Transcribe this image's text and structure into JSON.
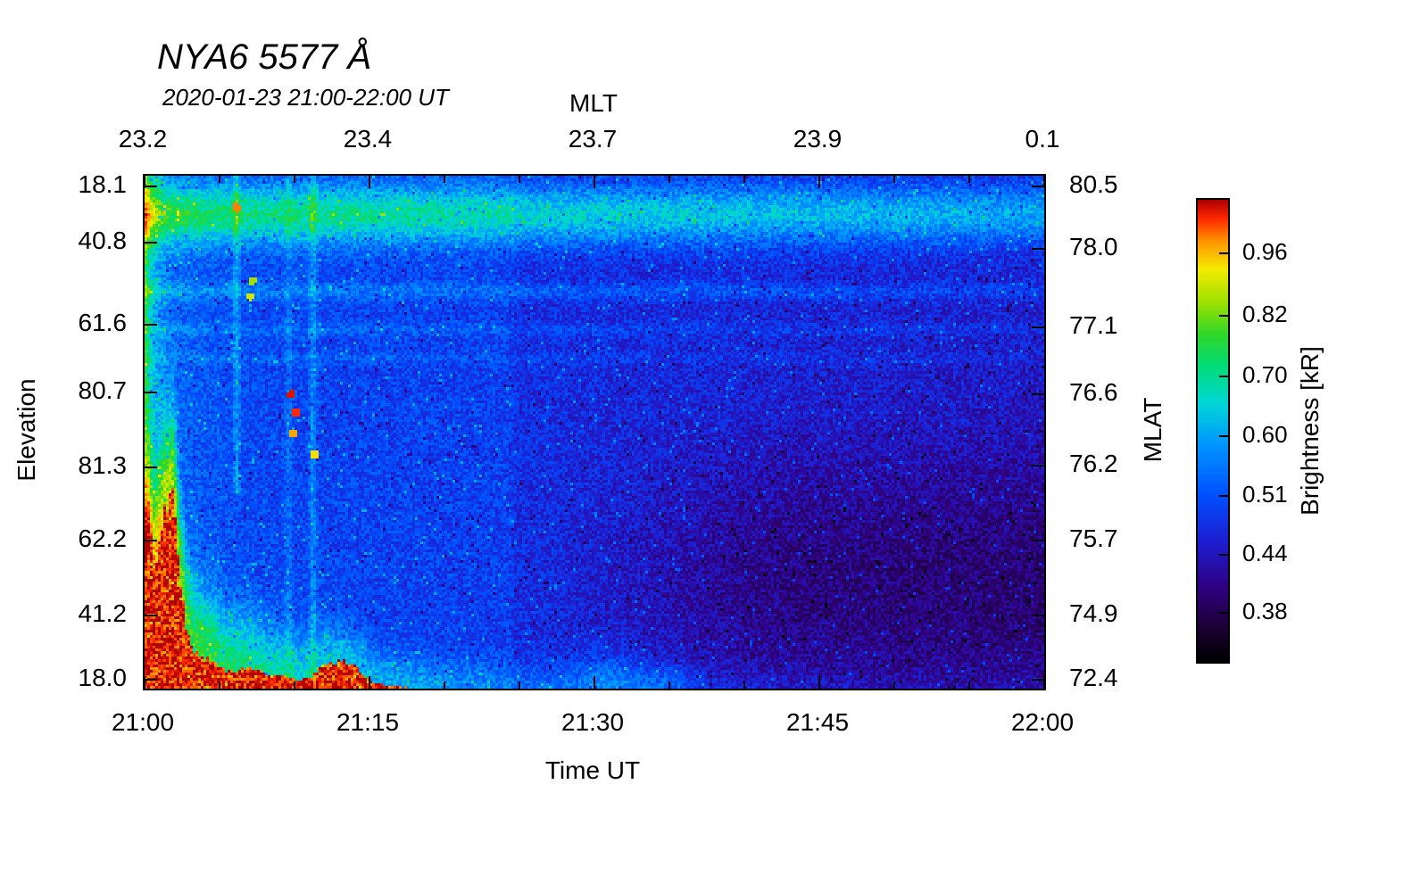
{
  "chart_data": {
    "type": "heatmap",
    "title": "NYA6 5577 Å",
    "subtitle": "2020-01-23 21:00-22:00 UT",
    "axes": {
      "top": {
        "label": "MLT",
        "ticks": [
          "23.2",
          "23.4",
          "23.7",
          "23.9",
          "0.1"
        ],
        "fractions": [
          0,
          0.25,
          0.5,
          0.75,
          1
        ]
      },
      "bottom": {
        "label": "Time UT",
        "ticks": [
          "21:00",
          "21:15",
          "21:30",
          "21:45",
          "22:00"
        ],
        "fractions": [
          0,
          0.25,
          0.5,
          0.75,
          1
        ]
      },
      "left": {
        "label": "Elevation",
        "ticks": [
          "18.1",
          "40.8",
          "61.6",
          "80.7",
          "81.3",
          "62.2",
          "41.2",
          "18.0"
        ],
        "fractions": [
          0.02,
          0.13,
          0.29,
          0.423,
          0.569,
          0.711,
          0.857,
          0.983
        ]
      },
      "right": {
        "label": "MLAT",
        "ticks": [
          "80.5",
          "78.0",
          "77.1",
          "76.6",
          "76.2",
          "75.7",
          "74.9",
          "72.4"
        ],
        "fractions": [
          0.02,
          0.143,
          0.296,
          0.426,
          0.565,
          0.711,
          0.857,
          0.983
        ]
      }
    },
    "colorbar": {
      "label": "Brightness [kR]",
      "ticks": [
        "0.96",
        "0.82",
        "0.70",
        "0.60",
        "0.51",
        "0.44",
        "0.38"
      ],
      "tick_values": [
        0.96,
        0.82,
        0.7,
        0.6,
        0.51,
        0.44,
        0.38
      ],
      "fractions": [
        0.116,
        0.251,
        0.382,
        0.512,
        0.641,
        0.768,
        0.894
      ],
      "scale": "logarithmic"
    },
    "value_range_kR": [
      0.33,
      1.05
    ],
    "features_description": [
      "Bright cyan-green horizontal emission band across the whole hour near the top of the keogram (elevation 18.1-40.8), fading slightly toward 22:00",
      "Intense saturated red auroral brightening at bottom-left (21:00-21:05, low elevation), decaying into a thin red strip along the bottom edge until about 21:18",
      "Red flame-like spike near 21:01-21:02 reaching mid elevations, bordered by yellow-green and cyan fringes",
      "Faint vertical light streaks near 21:06 and 21:11-21:12",
      "Isolated red-orange pixels near 21:10 at mid elevations",
      "Blue noisy background dimming toward 22:00; darkest near-black mottling at lower right",
      "Thin cyan horizontal striations near the 40.8 and 61.6 elevation rows",
      "Cyan bumps along the bottom edge near 21:30-21:37"
    ],
    "render": {
      "grid": {
        "nx": 336,
        "ny": 192
      },
      "noise": 0.14,
      "colormap_stops": [
        [
          0.0,
          [
            0,
            0,
            0
          ]
        ],
        [
          0.07,
          [
            26,
            0,
            50
          ]
        ],
        [
          0.16,
          [
            48,
            0,
            130
          ]
        ],
        [
          0.26,
          [
            30,
            30,
            210
          ]
        ],
        [
          0.36,
          [
            0,
            80,
            255
          ]
        ],
        [
          0.47,
          [
            0,
            150,
            255
          ]
        ],
        [
          0.56,
          [
            0,
            215,
            215
          ]
        ],
        [
          0.64,
          [
            0,
            220,
            120
          ]
        ],
        [
          0.71,
          [
            50,
            215,
            40
          ]
        ],
        [
          0.78,
          [
            160,
            225,
            0
          ]
        ],
        [
          0.85,
          [
            245,
            235,
            0
          ]
        ],
        [
          0.91,
          [
            255,
            150,
            0
          ]
        ],
        [
          0.96,
          [
            255,
            40,
            0
          ]
        ],
        [
          1.0,
          [
            175,
            0,
            0
          ]
        ]
      ],
      "features": [
        {
          "type": "base",
          "v0": 0.345,
          "slope": -0.055
        },
        {
          "type": "hband",
          "y": 0.075,
          "sigma": 0.042,
          "amp": 0.3,
          "xfade": 0.25
        },
        {
          "type": "hband",
          "y": 0.225,
          "sigma": 0.012,
          "amp": 0.1,
          "xfade": 0.35
        },
        {
          "type": "hband",
          "y": 0.3,
          "sigma": 0.009,
          "amp": 0.06,
          "xfade": 0.45
        },
        {
          "type": "hband",
          "y": 0.355,
          "sigma": 0.008,
          "amp": 0.045,
          "xfade": 0.5
        },
        {
          "type": "vglow",
          "amp": 0.33,
          "width": 0.011
        },
        {
          "type": "vline",
          "x": 0.102,
          "w": 0.0026,
          "amp": 0.12,
          "ymax": 0.62
        },
        {
          "type": "vline",
          "x": 0.16,
          "w": 0.0028,
          "amp": 0.07,
          "ymax": 1
        },
        {
          "type": "vline",
          "x": 0.187,
          "w": 0.003,
          "amp": 0.11,
          "ymax": 1
        },
        {
          "type": "step",
          "x": 0.41,
          "amp": -0.028
        },
        {
          "type": "blob",
          "x": 0.52,
          "y": 1.0,
          "sx": 0.035,
          "sy": 0.05,
          "amp": 0.12
        },
        {
          "type": "blob",
          "x": 0.585,
          "y": 1.0,
          "sx": 0.02,
          "sy": 0.035,
          "amp": 0.08
        },
        {
          "type": "blob",
          "x": 0.0,
          "y": 0.5,
          "sx": 0.06,
          "sy": 0.5,
          "amp": 0.05
        },
        {
          "type": "darken",
          "x0": 0.38,
          "x1": 0.75,
          "y": 0.8,
          "sy": 0.2,
          "amp": -0.12
        }
      ],
      "bottom": {
        "core": 0.2,
        "xdecay": 0.042,
        "flame_x": 0.027,
        "flame_w": 0.009,
        "flame_h": 0.2,
        "bump_x": 0.215,
        "bump_w": 0.018,
        "bump_h": 0.04,
        "strip_h": 0.032,
        "strip_xend": 0.34,
        "fringe_amp": 0.42,
        "fringe_base": 0.1,
        "fringe_xdecay": 0.16,
        "fringe_min": 0.026,
        "fringe_amp_xdecay": 0.3,
        "red_v": 0.97
      },
      "dots": [
        [
          0.102,
          0.062,
          0.92
        ],
        [
          0.163,
          0.425,
          0.98
        ],
        [
          0.168,
          0.462,
          0.96
        ],
        [
          0.165,
          0.502,
          0.9
        ],
        [
          0.189,
          0.545,
          0.86
        ],
        [
          0.118,
          0.235,
          0.82
        ],
        [
          0.12,
          0.205,
          0.78
        ]
      ]
    }
  }
}
